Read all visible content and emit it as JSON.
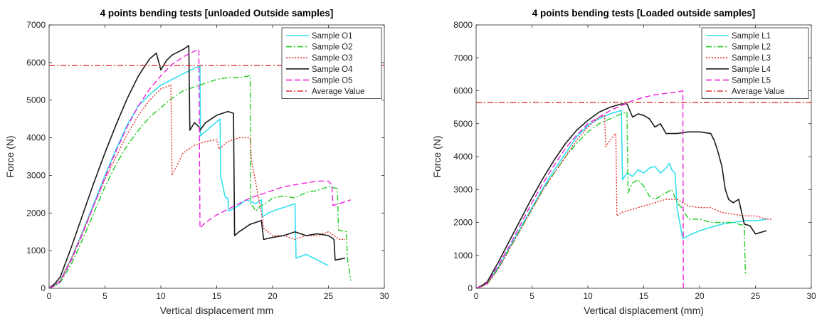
{
  "chart_data": [
    {
      "type": "line",
      "title": "4 points bending tests [unloaded Outside samples]",
      "xlabel": "Vertical displacement mm",
      "ylabel": "Force (N)",
      "xlim": [
        0,
        30
      ],
      "ylim": [
        0,
        7000
      ],
      "xticks": [
        0,
        5,
        10,
        15,
        20,
        25,
        30
      ],
      "yticks": [
        0,
        1000,
        2000,
        3000,
        4000,
        5000,
        6000,
        7000
      ],
      "legend_position": "top-right",
      "grid": false,
      "series": [
        {
          "name": "Sample O1",
          "color": "#33e0f0",
          "dash": "solid",
          "x": [
            0,
            0.5,
            1,
            2,
            3,
            4,
            5,
            6,
            7,
            8,
            9,
            10,
            11,
            12,
            13,
            13.5,
            13.55,
            14.5,
            15.3,
            15.35,
            15.7,
            15.8,
            16,
            16.05,
            17,
            17.6,
            18.5,
            19,
            19.1,
            19.6,
            20.5,
            22,
            22.1,
            23,
            24,
            25
          ],
          "y": [
            0,
            80,
            200,
            800,
            1500,
            2250,
            3000,
            3700,
            4350,
            4850,
            5150,
            5400,
            5550,
            5700,
            5850,
            5900,
            4050,
            4300,
            4500,
            3000,
            2500,
            2400,
            2400,
            2050,
            2200,
            2350,
            2250,
            2350,
            1900,
            2000,
            2100,
            2250,
            800,
            900,
            750,
            600
          ]
        },
        {
          "name": "Sample O2",
          "color": "#22cc22",
          "dash": "8 3 2 3",
          "x": [
            0,
            0.5,
            1,
            2,
            3,
            4,
            5,
            6,
            7,
            8,
            9,
            10,
            11,
            12,
            13,
            14,
            15,
            16,
            17,
            18,
            18.05,
            18.2,
            18.5,
            19,
            19.6,
            20,
            21,
            22,
            23,
            24,
            25,
            25.8,
            25.9,
            26.6,
            26.7,
            27
          ],
          "y": [
            0,
            60,
            150,
            650,
            1300,
            2000,
            2700,
            3300,
            3800,
            4200,
            4550,
            4800,
            5050,
            5250,
            5350,
            5450,
            5550,
            5600,
            5600,
            5650,
            2200,
            2200,
            2050,
            2200,
            2300,
            2400,
            2450,
            2400,
            2550,
            2600,
            2700,
            2650,
            1550,
            1500,
            800,
            200
          ]
        },
        {
          "name": "Sample O3",
          "color": "#e03030",
          "dash": "2 2",
          "x": [
            0,
            0.5,
            1,
            2,
            3,
            4,
            5,
            6,
            7,
            8,
            9,
            10,
            10.9,
            11,
            11.5,
            12,
            13,
            14,
            15,
            15.2,
            16,
            17,
            18,
            18.1,
            18.5,
            19,
            19.2,
            20,
            21,
            22,
            23,
            24,
            25,
            26,
            26.5
          ],
          "y": [
            0,
            80,
            200,
            800,
            1500,
            2200,
            2900,
            3500,
            4100,
            4600,
            5000,
            5300,
            5400,
            3000,
            3300,
            3600,
            3800,
            3900,
            3950,
            3700,
            3900,
            4000,
            4000,
            3400,
            2800,
            2000,
            1600,
            1400,
            1400,
            1300,
            1400,
            1400,
            1500,
            1300,
            1300
          ]
        },
        {
          "name": "Sample O4",
          "color": "#1a1a1a",
          "dash": "solid",
          "x": [
            0,
            0.5,
            1,
            2,
            3,
            4,
            5,
            6,
            7,
            8,
            9,
            9.6,
            10,
            10.5,
            11,
            12,
            12.5,
            12.6,
            13,
            13.4,
            13.5,
            14,
            15,
            16,
            16.5,
            16.6,
            17,
            18,
            19,
            19.2,
            20,
            21,
            22,
            23,
            24,
            25,
            25.5,
            25.6,
            26.5
          ],
          "y": [
            0,
            120,
            300,
            1100,
            1950,
            2800,
            3600,
            4350,
            5050,
            5650,
            6100,
            6250,
            5800,
            6050,
            6200,
            6350,
            6450,
            4200,
            4400,
            4300,
            4200,
            4400,
            4600,
            4700,
            4650,
            1400,
            1500,
            1700,
            1800,
            1300,
            1350,
            1400,
            1500,
            1400,
            1450,
            1400,
            1300,
            750,
            800
          ]
        },
        {
          "name": "Sample O5",
          "color": "#ee22dd",
          "dash": "8 4",
          "x": [
            0,
            0.5,
            1,
            2,
            3,
            4,
            5,
            6,
            7,
            8,
            9,
            10,
            11,
            12,
            13,
            13.4,
            13.5,
            14,
            15,
            16,
            17,
            18,
            19,
            20,
            21,
            22,
            23,
            24,
            25,
            25.3,
            25.4,
            26,
            27
          ],
          "y": [
            0,
            70,
            180,
            750,
            1450,
            2200,
            2950,
            3650,
            4300,
            4850,
            5300,
            5650,
            5950,
            6150,
            6300,
            6350,
            1600,
            1750,
            1950,
            2100,
            2250,
            2400,
            2500,
            2600,
            2700,
            2750,
            2800,
            2850,
            2850,
            2750,
            2200,
            2250,
            2350
          ]
        },
        {
          "name": "Average Value",
          "color": "#dd3030",
          "dash": "8 3 2 3",
          "x": [
            0,
            30
          ],
          "y": [
            5920,
            5920
          ]
        }
      ]
    },
    {
      "type": "line",
      "title": "4 points bending tests [Loaded outside samples]",
      "xlabel": "Vertical displacement (mm)",
      "ylabel": "Force (N)",
      "xlim": [
        0,
        30
      ],
      "ylim": [
        0,
        8000
      ],
      "xticks": [
        0,
        5,
        10,
        15,
        20,
        25,
        30
      ],
      "yticks": [
        0,
        1000,
        2000,
        3000,
        4000,
        5000,
        6000,
        7000,
        8000
      ],
      "legend_position": "top-right",
      "grid": false,
      "series": [
        {
          "name": "Sample L1",
          "color": "#33e0f0",
          "dash": "solid",
          "x": [
            0,
            0.5,
            1,
            2,
            3,
            4,
            5,
            6,
            7,
            8,
            9,
            10,
            11,
            12,
            13,
            13.1,
            13.5,
            14,
            14.5,
            15,
            15.5,
            16,
            16.5,
            17,
            17.3,
            17.5,
            17.8,
            18,
            18.5,
            19,
            20,
            21,
            22,
            23,
            24,
            25,
            26
          ],
          "y": [
            0,
            60,
            150,
            650,
            1250,
            1850,
            2450,
            3050,
            3600,
            4100,
            4600,
            4950,
            5150,
            5300,
            5400,
            3300,
            3500,
            3400,
            3600,
            3500,
            3650,
            3700,
            3500,
            3650,
            3800,
            3600,
            3500,
            2400,
            1500,
            1600,
            1750,
            1850,
            1950,
            2000,
            2050,
            2050,
            2100
          ]
        },
        {
          "name": "Sample L2",
          "color": "#22cc22",
          "dash": "8 3 2 3",
          "x": [
            0,
            0.5,
            1,
            2,
            3,
            4,
            5,
            6,
            7,
            8,
            9,
            10,
            11,
            12,
            13,
            13.5,
            13.6,
            14,
            14.5,
            15,
            15.5,
            16,
            16.5,
            17,
            17.5,
            18,
            18.5,
            19,
            20,
            21,
            22,
            23,
            24,
            24.1
          ],
          "y": [
            0,
            50,
            130,
            600,
            1200,
            1800,
            2400,
            3000,
            3500,
            4000,
            4400,
            4750,
            5000,
            5150,
            5300,
            5350,
            2900,
            3200,
            3300,
            3100,
            2800,
            2700,
            2800,
            2900,
            3000,
            2600,
            2400,
            2100,
            2100,
            2000,
            2000,
            2000,
            1900,
            400
          ]
        },
        {
          "name": "Sample L3",
          "color": "#e03030",
          "dash": "2 2",
          "x": [
            0,
            0.5,
            1,
            2,
            3,
            4,
            5,
            6,
            7,
            8,
            9,
            10,
            11,
            11.5,
            11.6,
            12,
            12.5,
            12.6,
            13,
            14,
            15,
            16,
            17,
            18,
            19,
            20,
            21,
            22,
            23,
            24,
            25,
            26,
            26.5
          ],
          "y": [
            0,
            50,
            130,
            600,
            1200,
            1800,
            2400,
            3000,
            3500,
            4000,
            4500,
            4900,
            5200,
            5250,
            4300,
            4500,
            4700,
            2200,
            2300,
            2400,
            2500,
            2600,
            2700,
            2700,
            2500,
            2450,
            2450,
            2300,
            2250,
            2200,
            2200,
            2100,
            2100
          ]
        },
        {
          "name": "Sample L4",
          "color": "#1a1a1a",
          "dash": "solid",
          "x": [
            0,
            0.5,
            1,
            2,
            3,
            4,
            5,
            6,
            7,
            8,
            9,
            10,
            11,
            12,
            13,
            13.5,
            14,
            14.5,
            15,
            15.5,
            16,
            16.5,
            17,
            18,
            19,
            20,
            21,
            21.3,
            21.6,
            22,
            22.3,
            22.6,
            23,
            23.5,
            24,
            24.5,
            25,
            25.5,
            26
          ],
          "y": [
            0,
            80,
            200,
            800,
            1450,
            2100,
            2750,
            3350,
            3900,
            4400,
            4800,
            5100,
            5350,
            5500,
            5600,
            5600,
            5200,
            5300,
            5250,
            5150,
            4900,
            5000,
            4700,
            4700,
            4750,
            4750,
            4700,
            4500,
            4200,
            3700,
            3000,
            2700,
            2600,
            2700,
            1950,
            1900,
            1650,
            1700,
            1750
          ]
        },
        {
          "name": "Sample L5",
          "color": "#ee22dd",
          "dash": "8 4",
          "x": [
            0,
            0.5,
            1,
            2,
            3,
            4,
            5,
            6,
            7,
            8,
            9,
            10,
            11,
            12,
            13,
            14,
            15,
            16,
            17,
            18,
            18.5,
            18.55
          ],
          "y": [
            0,
            60,
            160,
            700,
            1300,
            1950,
            2600,
            3200,
            3750,
            4250,
            4650,
            5000,
            5200,
            5400,
            5550,
            5700,
            5800,
            5880,
            5920,
            5960,
            6000,
            0
          ]
        },
        {
          "name": "Average Value",
          "color": "#dd3030",
          "dash": "8 3 2 3",
          "x": [
            0,
            30
          ],
          "y": [
            5650,
            5650
          ]
        }
      ]
    }
  ]
}
